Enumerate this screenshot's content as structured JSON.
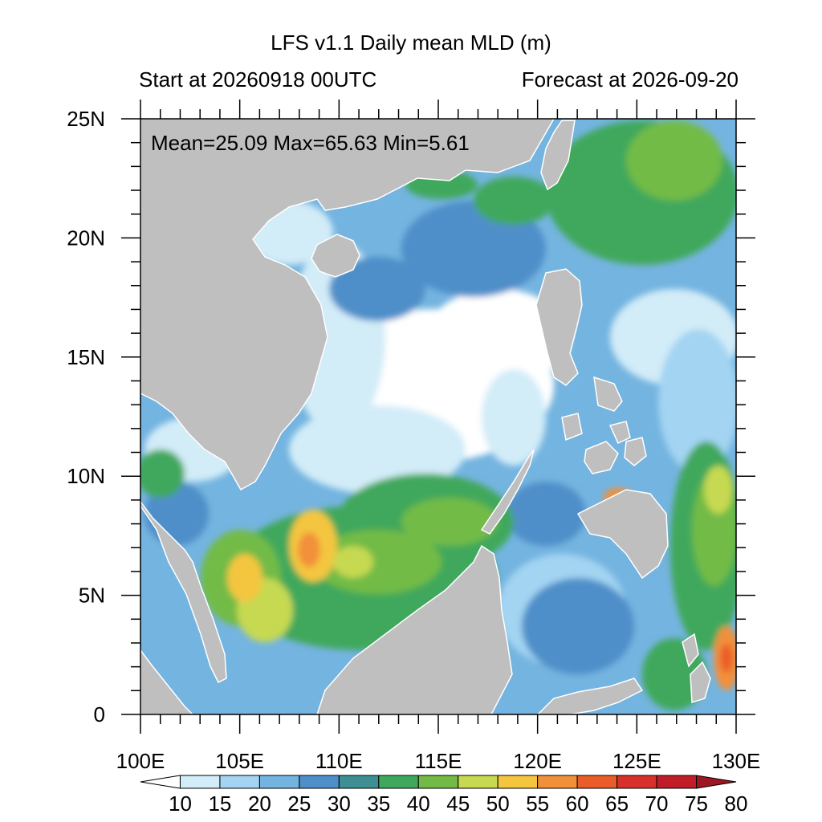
{
  "title": "LFS v1.1 Daily mean MLD (m)",
  "start_label": "Start at 20260918 00UTC",
  "forecast_label": "Forecast at 2026-09-20",
  "stats": "Mean=25.09  Max=65.63  Min=5.61",
  "lat_ticks": [
    "25N",
    "20N",
    "15N",
    "10N",
    "5N",
    "0"
  ],
  "lon_ticks": [
    "100E",
    "105E",
    "110E",
    "115E",
    "120E",
    "125E",
    "130E"
  ],
  "colorbar": {
    "labels": [
      "10",
      "15",
      "20",
      "25",
      "30",
      "35",
      "40",
      "45",
      "50",
      "55",
      "60",
      "65",
      "70",
      "75",
      "80"
    ],
    "colors": [
      "#ffffff",
      "#d2ecf8",
      "#a3d4f2",
      "#74b4e0",
      "#4f8fc9",
      "#3e8f94",
      "#40a85c",
      "#72bb46",
      "#c6d951",
      "#f4c640",
      "#f2903a",
      "#ea5d2a",
      "#d8302a",
      "#c11d28",
      "#9e1622"
    ]
  },
  "colors": {
    "land": "#bfbfbf",
    "ocean_base": "#74b4e0"
  }
}
